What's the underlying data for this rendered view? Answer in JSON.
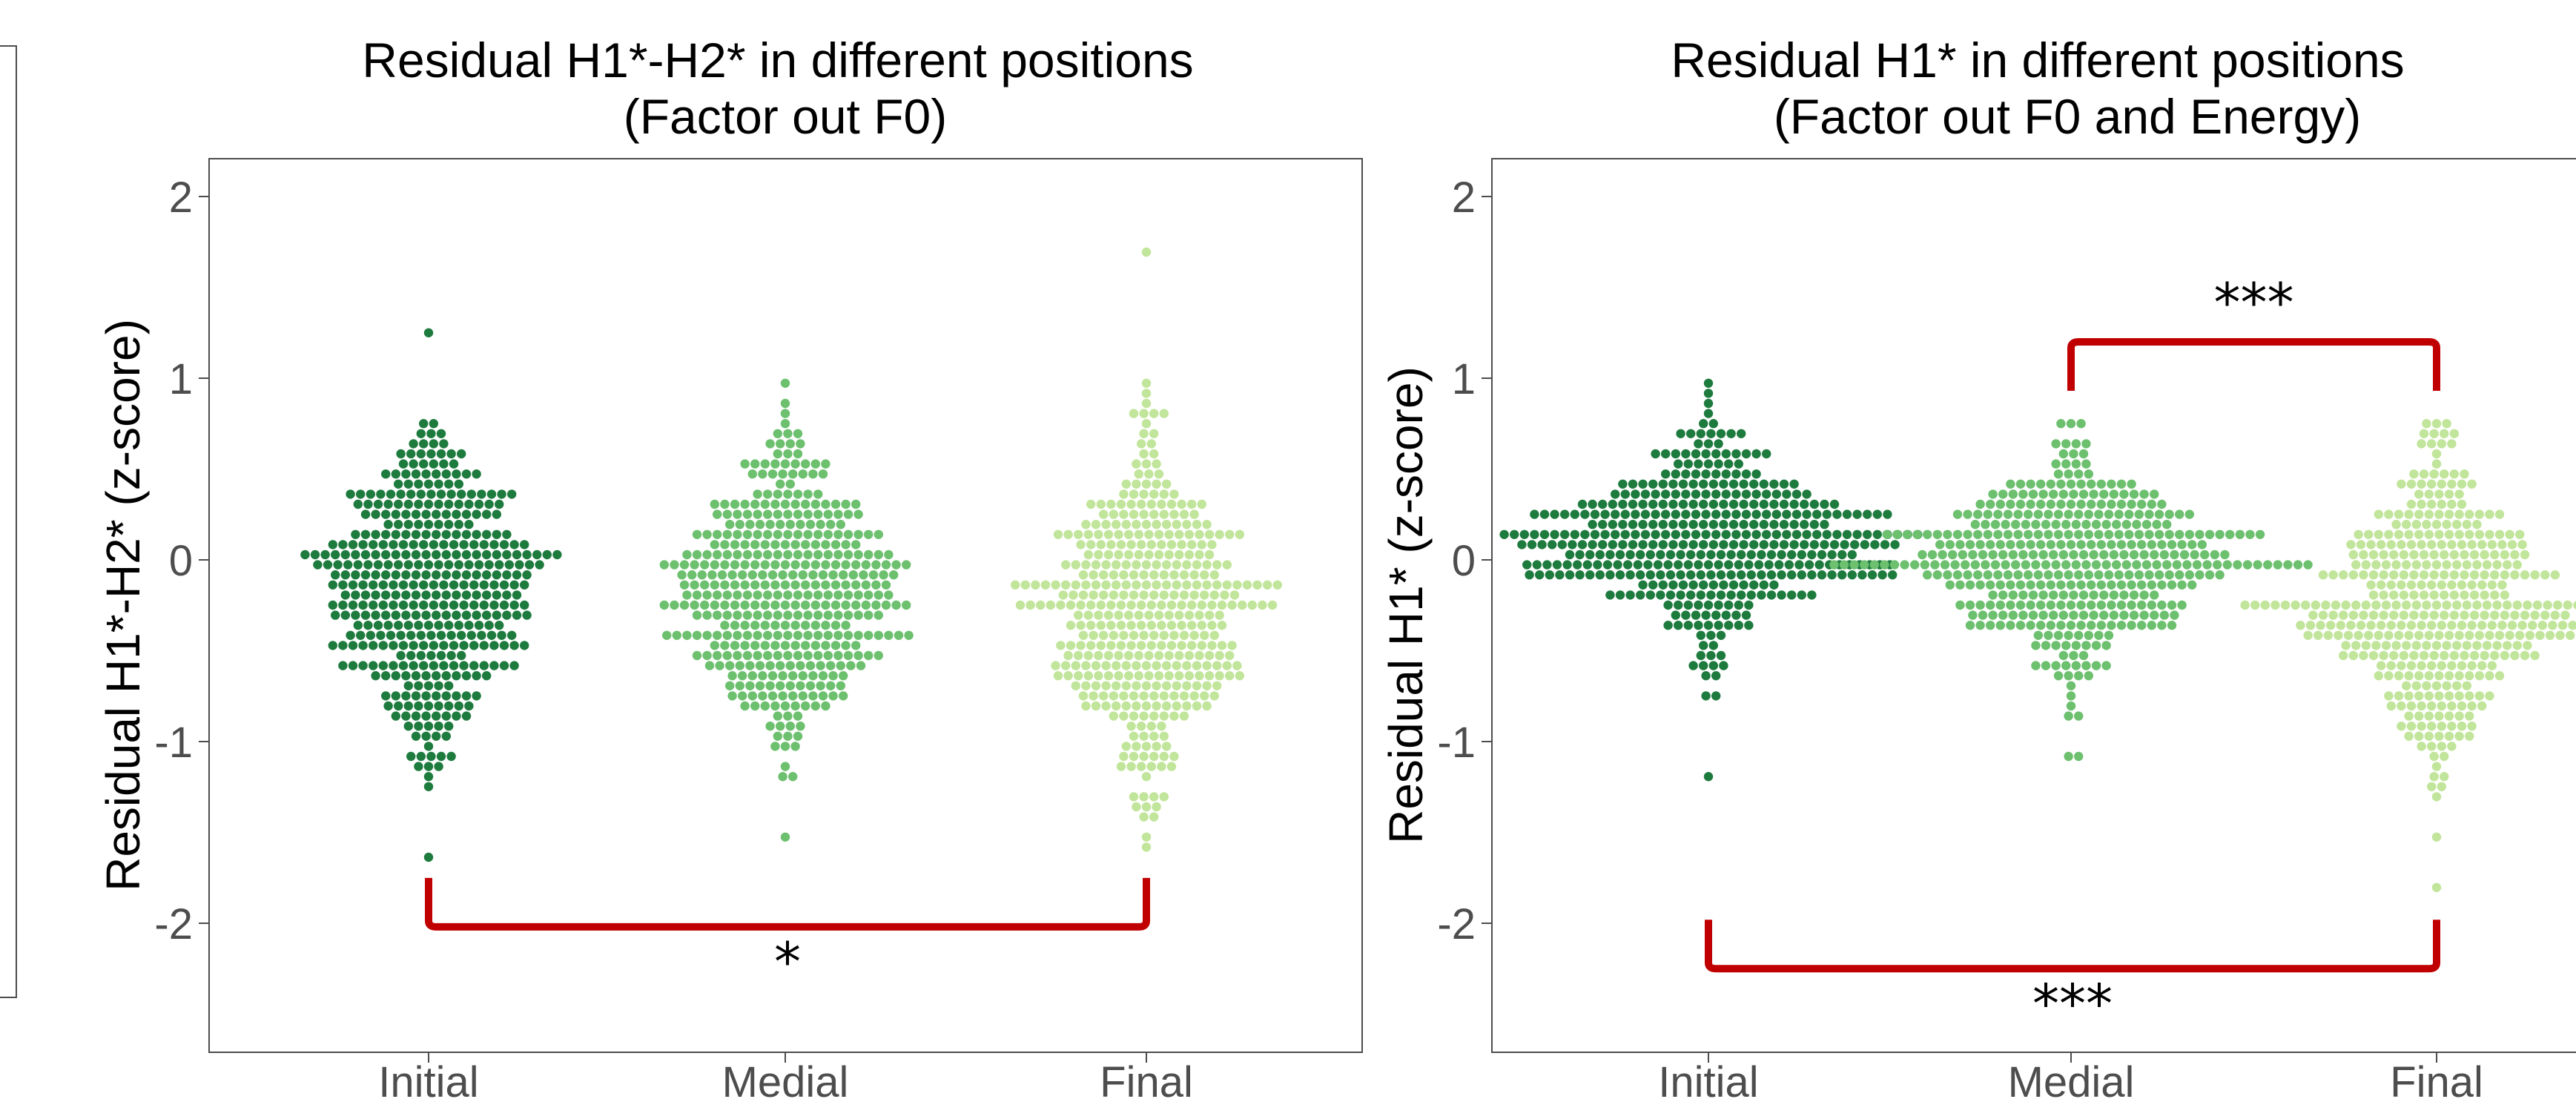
{
  "chart_data": [
    {
      "type": "scatter",
      "subtype": "beeswarm",
      "title": "Residual H1*-H2* in different positions",
      "subtitle": "(Factor out F0)",
      "xlabel": "",
      "ylabel": "Residual H1*-H2* (z-score)",
      "categories": [
        "Initial",
        "Medial",
        "Final"
      ],
      "ylim": [
        -2.7,
        2.2
      ],
      "yticks": [
        -2,
        -1,
        0,
        1,
        2
      ],
      "series": [
        {
          "category": "Initial",
          "color": "#1e7b3e",
          "summary": {
            "n": 420,
            "center": -0.15,
            "sd": 0.42,
            "min": -1.62,
            "max": 1.24
          }
        },
        {
          "category": "Medial",
          "color": "#6cc06e",
          "summary": {
            "n": 420,
            "center": -0.2,
            "sd": 0.38,
            "min": -1.53,
            "max": 1.0
          }
        },
        {
          "category": "Final",
          "color": "#c1e59a",
          "summary": {
            "n": 420,
            "center": -0.25,
            "sd": 0.45,
            "min": -1.6,
            "max": 1.68
          }
        }
      ],
      "significance": [
        {
          "from": "Initial",
          "to": "Final",
          "label": "*",
          "y": -2.02
        }
      ],
      "grid": false,
      "legend": "none"
    },
    {
      "type": "scatter",
      "subtype": "beeswarm",
      "title": "Residual H1* in different positions",
      "subtitle": "(Factor out F0 and Energy)",
      "xlabel": "",
      "ylabel": "Residual H1* (z-score)",
      "categories": [
        "Initial",
        "Medial",
        "Final"
      ],
      "ylim": [
        -2.7,
        2.2
      ],
      "yticks": [
        -2,
        -1,
        0,
        1,
        2
      ],
      "series": [
        {
          "category": "Initial",
          "color": "#1e7b3e",
          "summary": {
            "n": 430,
            "center": 0.12,
            "sd": 0.28,
            "min": -1.2,
            "max": 1.0
          }
        },
        {
          "category": "Medial",
          "color": "#6cc06e",
          "summary": {
            "n": 430,
            "center": 0.0,
            "sd": 0.28,
            "min": -1.08,
            "max": 0.75
          }
        },
        {
          "category": "Final",
          "color": "#c1e59a",
          "summary": {
            "n": 430,
            "center": -0.25,
            "sd": 0.42,
            "min": -1.8,
            "max": 0.75
          }
        }
      ],
      "significance": [
        {
          "from": "Medial",
          "to": "Final",
          "label": "***",
          "y": 1.2
        },
        {
          "from": "Initial",
          "to": "Final",
          "label": "***",
          "y": -2.25
        }
      ],
      "grid": false,
      "legend": "none"
    }
  ],
  "colors": {
    "bracket": "#c00000",
    "axis": "#4d4d4d"
  }
}
